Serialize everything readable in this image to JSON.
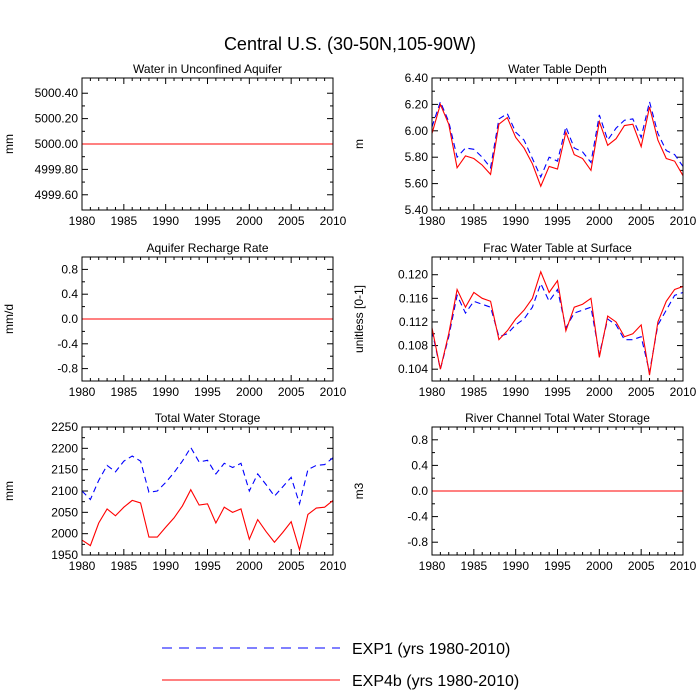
{
  "title": "Central U.S. (30-50N,105-90W)",
  "legend": [
    {
      "label": "EXP1 (yrs 1980-2010)",
      "color": "#0000ff",
      "style": "dashed"
    },
    {
      "label": "EXP4b (yrs 1980-2010)",
      "color": "#ff0000",
      "style": "solid"
    }
  ],
  "chart_data": [
    {
      "type": "line",
      "title": "Water in Unconfined Aquifer",
      "xlabel": "",
      "ylabel": "mm",
      "xlim": [
        1980,
        2010
      ],
      "ylim": [
        4999.48,
        5000.52
      ],
      "xticks": [
        1980,
        1985,
        1990,
        1995,
        2000,
        2005,
        2010
      ],
      "yticks": [
        4999.6,
        4999.8,
        5000.0,
        5000.2,
        5000.4
      ],
      "ytick_labels": [
        "4999.60",
        "4999.80",
        "5000.00",
        "5000.20",
        "5000.40"
      ],
      "years": [
        1980,
        2010
      ],
      "series": [
        {
          "name": "EXP1",
          "values": [
            5000.0,
            5000.0
          ]
        },
        {
          "name": "EXP4b",
          "values": [
            5000.0,
            5000.0
          ]
        }
      ]
    },
    {
      "type": "line",
      "title": "Water Table Depth",
      "xlabel": "",
      "ylabel": "m",
      "xlim": [
        1980,
        2010
      ],
      "ylim": [
        5.4,
        6.4
      ],
      "xticks": [
        1980,
        1985,
        1990,
        1995,
        2000,
        2005,
        2010
      ],
      "yticks": [
        5.4,
        5.6,
        5.8,
        6.0,
        6.2,
        6.4
      ],
      "ytick_labels": [
        "5.40",
        "5.60",
        "5.80",
        "6.00",
        "6.20",
        "6.40"
      ],
      "years": [
        1980,
        1981,
        1982,
        1983,
        1984,
        1985,
        1986,
        1987,
        1988,
        1989,
        1990,
        1991,
        1992,
        1993,
        1994,
        1995,
        1996,
        1997,
        1998,
        1999,
        2000,
        2001,
        2002,
        2003,
        2004,
        2005,
        2006,
        2007,
        2008,
        2009,
        2010
      ],
      "series": [
        {
          "name": "EXP1",
          "values": [
            6.03,
            6.22,
            6.07,
            5.8,
            5.87,
            5.86,
            5.8,
            5.72,
            6.09,
            6.13,
            5.99,
            5.93,
            5.79,
            5.65,
            5.8,
            5.77,
            6.03,
            5.87,
            5.84,
            5.76,
            6.12,
            5.93,
            6.02,
            6.08,
            6.09,
            5.95,
            6.22,
            5.98,
            5.85,
            5.82,
            5.73
          ]
        },
        {
          "name": "EXP4b",
          "values": [
            5.98,
            6.2,
            6.05,
            5.72,
            5.81,
            5.79,
            5.74,
            5.67,
            6.05,
            6.1,
            5.95,
            5.87,
            5.75,
            5.58,
            5.73,
            5.71,
            5.99,
            5.82,
            5.79,
            5.7,
            6.07,
            5.89,
            5.94,
            6.04,
            6.05,
            5.88,
            6.18,
            5.93,
            5.79,
            5.77,
            5.66
          ]
        }
      ]
    },
    {
      "type": "line",
      "title": "Aquifer Recharge Rate",
      "xlabel": "",
      "ylabel": "mm/d",
      "xlim": [
        1980,
        2010
      ],
      "ylim": [
        -1.0,
        1.0
      ],
      "xticks": [
        1980,
        1985,
        1990,
        1995,
        2000,
        2005,
        2010
      ],
      "yticks": [
        -0.8,
        -0.4,
        0.0,
        0.4,
        0.8
      ],
      "ytick_labels": [
        "-0.8",
        "-0.4",
        "0.0",
        "0.4",
        "0.8"
      ],
      "years": [
        1980,
        2010
      ],
      "series": [
        {
          "name": "EXP1",
          "values": [
            0.0,
            0.0
          ]
        },
        {
          "name": "EXP4b",
          "values": [
            0.0,
            0.0
          ]
        }
      ]
    },
    {
      "type": "line",
      "title": "Frac Water Table at Surface",
      "xlabel": "",
      "ylabel": "unitless [0-1]",
      "xlim": [
        1980,
        2010
      ],
      "ylim": [
        0.102,
        0.123
      ],
      "xticks": [
        1980,
        1985,
        1990,
        1995,
        2000,
        2005,
        2010
      ],
      "yticks": [
        0.104,
        0.108,
        0.112,
        0.116,
        0.12
      ],
      "ytick_labels": [
        "0.104",
        "0.108",
        "0.112",
        "0.116",
        "0.120"
      ],
      "years": [
        1980,
        1981,
        1982,
        1983,
        1984,
        1985,
        1986,
        1987,
        1988,
        1989,
        1990,
        1991,
        1992,
        1993,
        1994,
        1995,
        1996,
        1997,
        1998,
        1999,
        2000,
        2001,
        2002,
        2003,
        2004,
        2005,
        2006,
        2007,
        2008,
        2009,
        2010
      ],
      "series": [
        {
          "name": "EXP1",
          "values": [
            0.1105,
            0.104,
            0.1095,
            0.1165,
            0.1135,
            0.1155,
            0.115,
            0.1145,
            0.1095,
            0.11,
            0.1115,
            0.1125,
            0.1145,
            0.1185,
            0.1155,
            0.1175,
            0.111,
            0.1135,
            0.114,
            0.1145,
            0.1065,
            0.1125,
            0.1115,
            0.109,
            0.109,
            0.1095,
            0.1035,
            0.1115,
            0.114,
            0.1165,
            0.117
          ]
        },
        {
          "name": "EXP4b",
          "values": [
            0.111,
            0.104,
            0.11,
            0.1175,
            0.1145,
            0.117,
            0.116,
            0.1155,
            0.109,
            0.1105,
            0.1125,
            0.114,
            0.116,
            0.1205,
            0.117,
            0.119,
            0.1105,
            0.1145,
            0.115,
            0.116,
            0.106,
            0.113,
            0.112,
            0.1095,
            0.11,
            0.1115,
            0.103,
            0.112,
            0.1155,
            0.1175,
            0.118
          ]
        }
      ]
    },
    {
      "type": "line",
      "title": "Total Water Storage",
      "xlabel": "",
      "ylabel": "mm",
      "xlim": [
        1980,
        2010
      ],
      "ylim": [
        1950,
        2250
      ],
      "xticks": [
        1980,
        1985,
        1990,
        1995,
        2000,
        2005,
        2010
      ],
      "yticks": [
        1950,
        2000,
        2050,
        2100,
        2150,
        2200,
        2250
      ],
      "ytick_labels": [
        "1950",
        "2000",
        "2050",
        "2100",
        "2150",
        "2200",
        "2250"
      ],
      "years": [
        1980,
        1981,
        1982,
        1983,
        1984,
        1985,
        1986,
        1987,
        1988,
        1989,
        1990,
        1991,
        1992,
        1993,
        1994,
        1995,
        1996,
        1997,
        1998,
        1999,
        2000,
        2001,
        2002,
        2003,
        2004,
        2005,
        2006,
        2007,
        2008,
        2009,
        2010
      ],
      "series": [
        {
          "name": "EXP1",
          "values": [
            2100,
            2080,
            2125,
            2160,
            2145,
            2170,
            2182,
            2170,
            2097,
            2100,
            2120,
            2143,
            2170,
            2202,
            2168,
            2172,
            2140,
            2165,
            2155,
            2165,
            2100,
            2140,
            2115,
            2088,
            2110,
            2132,
            2070,
            2150,
            2160,
            2162,
            2178
          ]
        },
        {
          "name": "EXP4b",
          "values": [
            1985,
            1972,
            2025,
            2058,
            2042,
            2062,
            2078,
            2072,
            1992,
            1992,
            2015,
            2037,
            2065,
            2103,
            2067,
            2070,
            2025,
            2062,
            2050,
            2058,
            1987,
            2033,
            2005,
            1980,
            2003,
            2028,
            1962,
            2045,
            2060,
            2062,
            2078
          ]
        }
      ]
    },
    {
      "type": "line",
      "title": "River Channel Total Water Storage",
      "xlabel": "",
      "ylabel": "m3",
      "xlim": [
        1980,
        2010
      ],
      "ylim": [
        -1.0,
        1.0
      ],
      "xticks": [
        1980,
        1985,
        1990,
        1995,
        2000,
        2005,
        2010
      ],
      "yticks": [
        -0.8,
        -0.4,
        0.0,
        0.4,
        0.8
      ],
      "ytick_labels": [
        "-0.8",
        "-0.4",
        "0.0",
        "0.4",
        "0.8"
      ],
      "years": [
        1980,
        2010
      ],
      "series": [
        {
          "name": "EXP1",
          "values": [
            0.0,
            0.0
          ]
        },
        {
          "name": "EXP4b",
          "values": [
            0.0,
            0.0
          ]
        }
      ]
    }
  ]
}
